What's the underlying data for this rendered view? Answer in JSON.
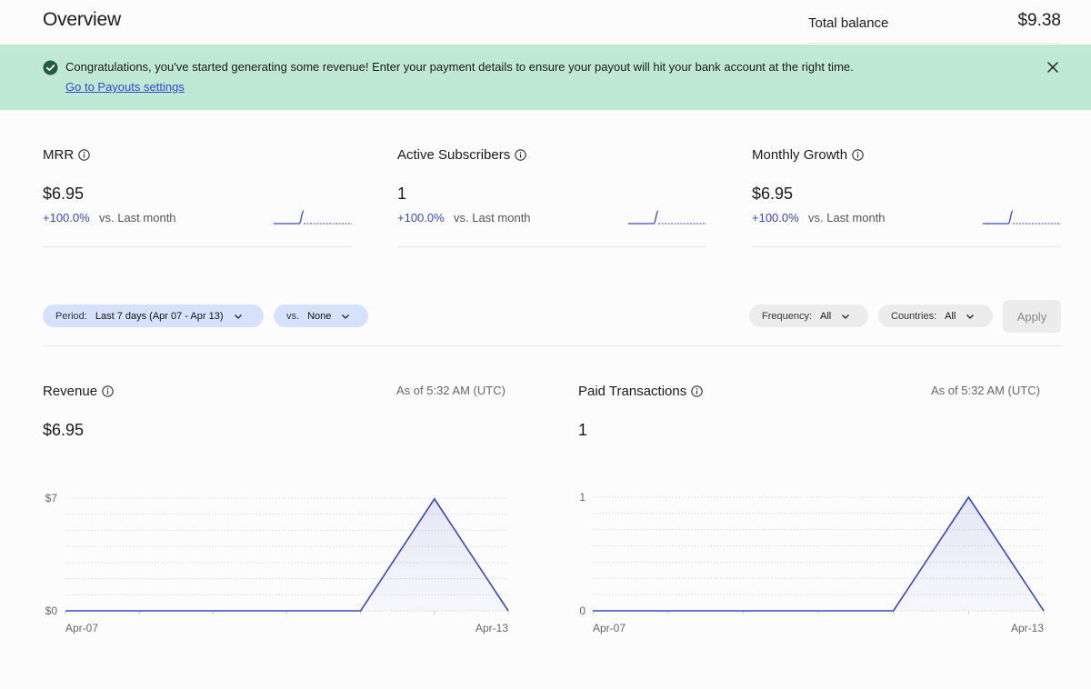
{
  "header": {
    "title": "Overview",
    "balance_label": "Total balance",
    "balance_value": "$9.38"
  },
  "banner": {
    "message": "Congratulations, you've started generating some revenue! Enter your payment details to ensure your payout will hit your bank account at the right time.",
    "link_label": "Go to Payouts settings",
    "bg_color": "#bfe9d5",
    "icon": "check-circle-icon"
  },
  "metrics": [
    {
      "title": "MRR",
      "value": "$6.95",
      "change": "+100.0%",
      "compare": "vs. Last month"
    },
    {
      "title": "Active Subscribers",
      "value": "1",
      "change": "+100.0%",
      "compare": "vs. Last month"
    },
    {
      "title": "Monthly Growth",
      "value": "$6.95",
      "change": "+100.0%",
      "compare": "vs. Last month"
    }
  ],
  "filters": {
    "period_label": "Period:",
    "period_value": "Last 7 days (Apr 07 - Apr 13)",
    "vs_label": "vs.",
    "vs_value": "None",
    "frequency_label": "Frequency:",
    "frequency_value": "All",
    "countries_label": "Countries:",
    "countries_value": "All",
    "apply_label": "Apply"
  },
  "accent_color": "#3a47c8",
  "chart_data": [
    {
      "type": "area",
      "title": "Revenue",
      "as_of": "As of 5:32 AM (UTC)",
      "summary_value": "$6.95",
      "x": [
        "Apr-07",
        "Apr-08",
        "Apr-09",
        "Apr-10",
        "Apr-11",
        "Apr-12",
        "Apr-13"
      ],
      "values": [
        0,
        0,
        0,
        0,
        0,
        6.95,
        0
      ],
      "ylim": [
        0,
        7
      ],
      "y_tick_labels": [
        "$0",
        "$7"
      ],
      "x_tick_labels": [
        "Apr-07",
        "Apr-13"
      ],
      "grid": true,
      "color": "#3a47c8"
    },
    {
      "type": "area",
      "title": "Paid Transactions",
      "as_of": "As of 5:32 AM (UTC)",
      "summary_value": "1",
      "x": [
        "Apr-07",
        "Apr-08",
        "Apr-09",
        "Apr-10",
        "Apr-11",
        "Apr-12",
        "Apr-13"
      ],
      "values": [
        0,
        0,
        0,
        0,
        0,
        1,
        0
      ],
      "ylim": [
        0,
        1
      ],
      "y_tick_labels": [
        "0",
        "1"
      ],
      "x_tick_labels": [
        "Apr-07",
        "Apr-13"
      ],
      "grid": true,
      "color": "#3a47c8"
    }
  ]
}
